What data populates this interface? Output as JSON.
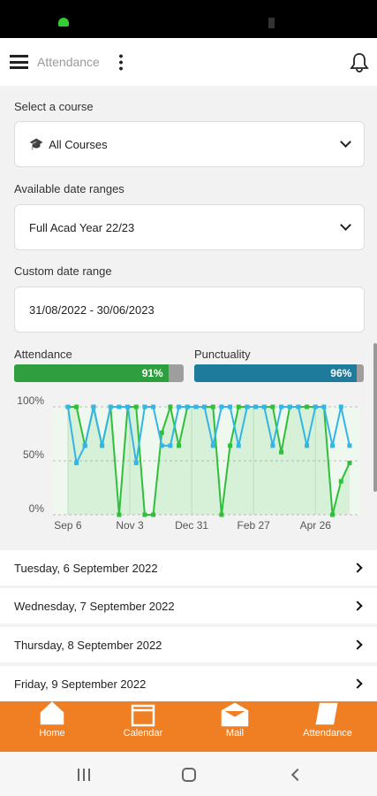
{
  "header": {
    "title": "Attendance"
  },
  "filters": [
    {
      "label": "Select a course",
      "value": "All Courses"
    },
    {
      "label": "Available date ranges",
      "value": "Full Acad Year 22/23"
    },
    {
      "label": "Custom date range",
      "value": "31/08/2022 - 30/06/2023"
    }
  ],
  "summary": [
    {
      "label": "Attendance",
      "value": 91,
      "value_label": "91%",
      "color": "#2f9e3f"
    },
    {
      "label": "Punctuality",
      "value": 96,
      "value_label": "96%",
      "color": "#1e7b9c"
    }
  ],
  "chart_data": {
    "type": "line",
    "ylim": [
      0,
      100
    ],
    "yticks": [
      {
        "value": 0,
        "label": "0%"
      },
      {
        "value": 50,
        "label": "50%"
      },
      {
        "value": 100,
        "label": "100%"
      }
    ],
    "xlim": [
      -14,
      274
    ],
    "xticks": [
      {
        "value": 0,
        "label": "Sep 6"
      },
      {
        "value": 58,
        "label": "Nov 3"
      },
      {
        "value": 116,
        "label": "Dec 31"
      },
      {
        "value": 174,
        "label": "Feb 27"
      },
      {
        "value": 232,
        "label": "Apr 26"
      }
    ],
    "x": [
      0,
      8,
      16,
      24,
      32,
      40,
      48,
      56,
      64,
      72,
      80,
      88,
      96,
      104,
      112,
      120,
      128,
      136,
      144,
      152,
      160,
      168,
      176,
      184,
      192,
      200,
      208,
      216,
      224,
      232,
      240,
      248,
      256,
      264
    ],
    "series": [
      {
        "color": "#2fbf3a",
        "values": [
          100,
          100,
          64,
          100,
          64,
          100,
          0,
          100,
          100,
          0,
          0,
          76,
          100,
          64,
          100,
          100,
          100,
          100,
          0,
          64,
          100,
          100,
          100,
          100,
          100,
          58,
          100,
          100,
          100,
          100,
          100,
          0,
          31,
          48
        ]
      },
      {
        "color": "#33b5e5",
        "values": [
          100,
          48,
          64,
          100,
          64,
          100,
          100,
          100,
          48,
          100,
          100,
          64,
          64,
          100,
          100,
          100,
          100,
          64,
          100,
          100,
          64,
          100,
          100,
          100,
          64,
          100,
          100,
          100,
          64,
          100,
          100,
          64,
          100,
          64
        ]
      }
    ]
  },
  "days": [
    "Tuesday, 6 September 2022",
    "Wednesday, 7 September 2022",
    "Thursday, 8 September 2022",
    "Friday, 9 September 2022"
  ],
  "nav": [
    "Home",
    "Calendar",
    "Mail",
    "Attendance"
  ]
}
